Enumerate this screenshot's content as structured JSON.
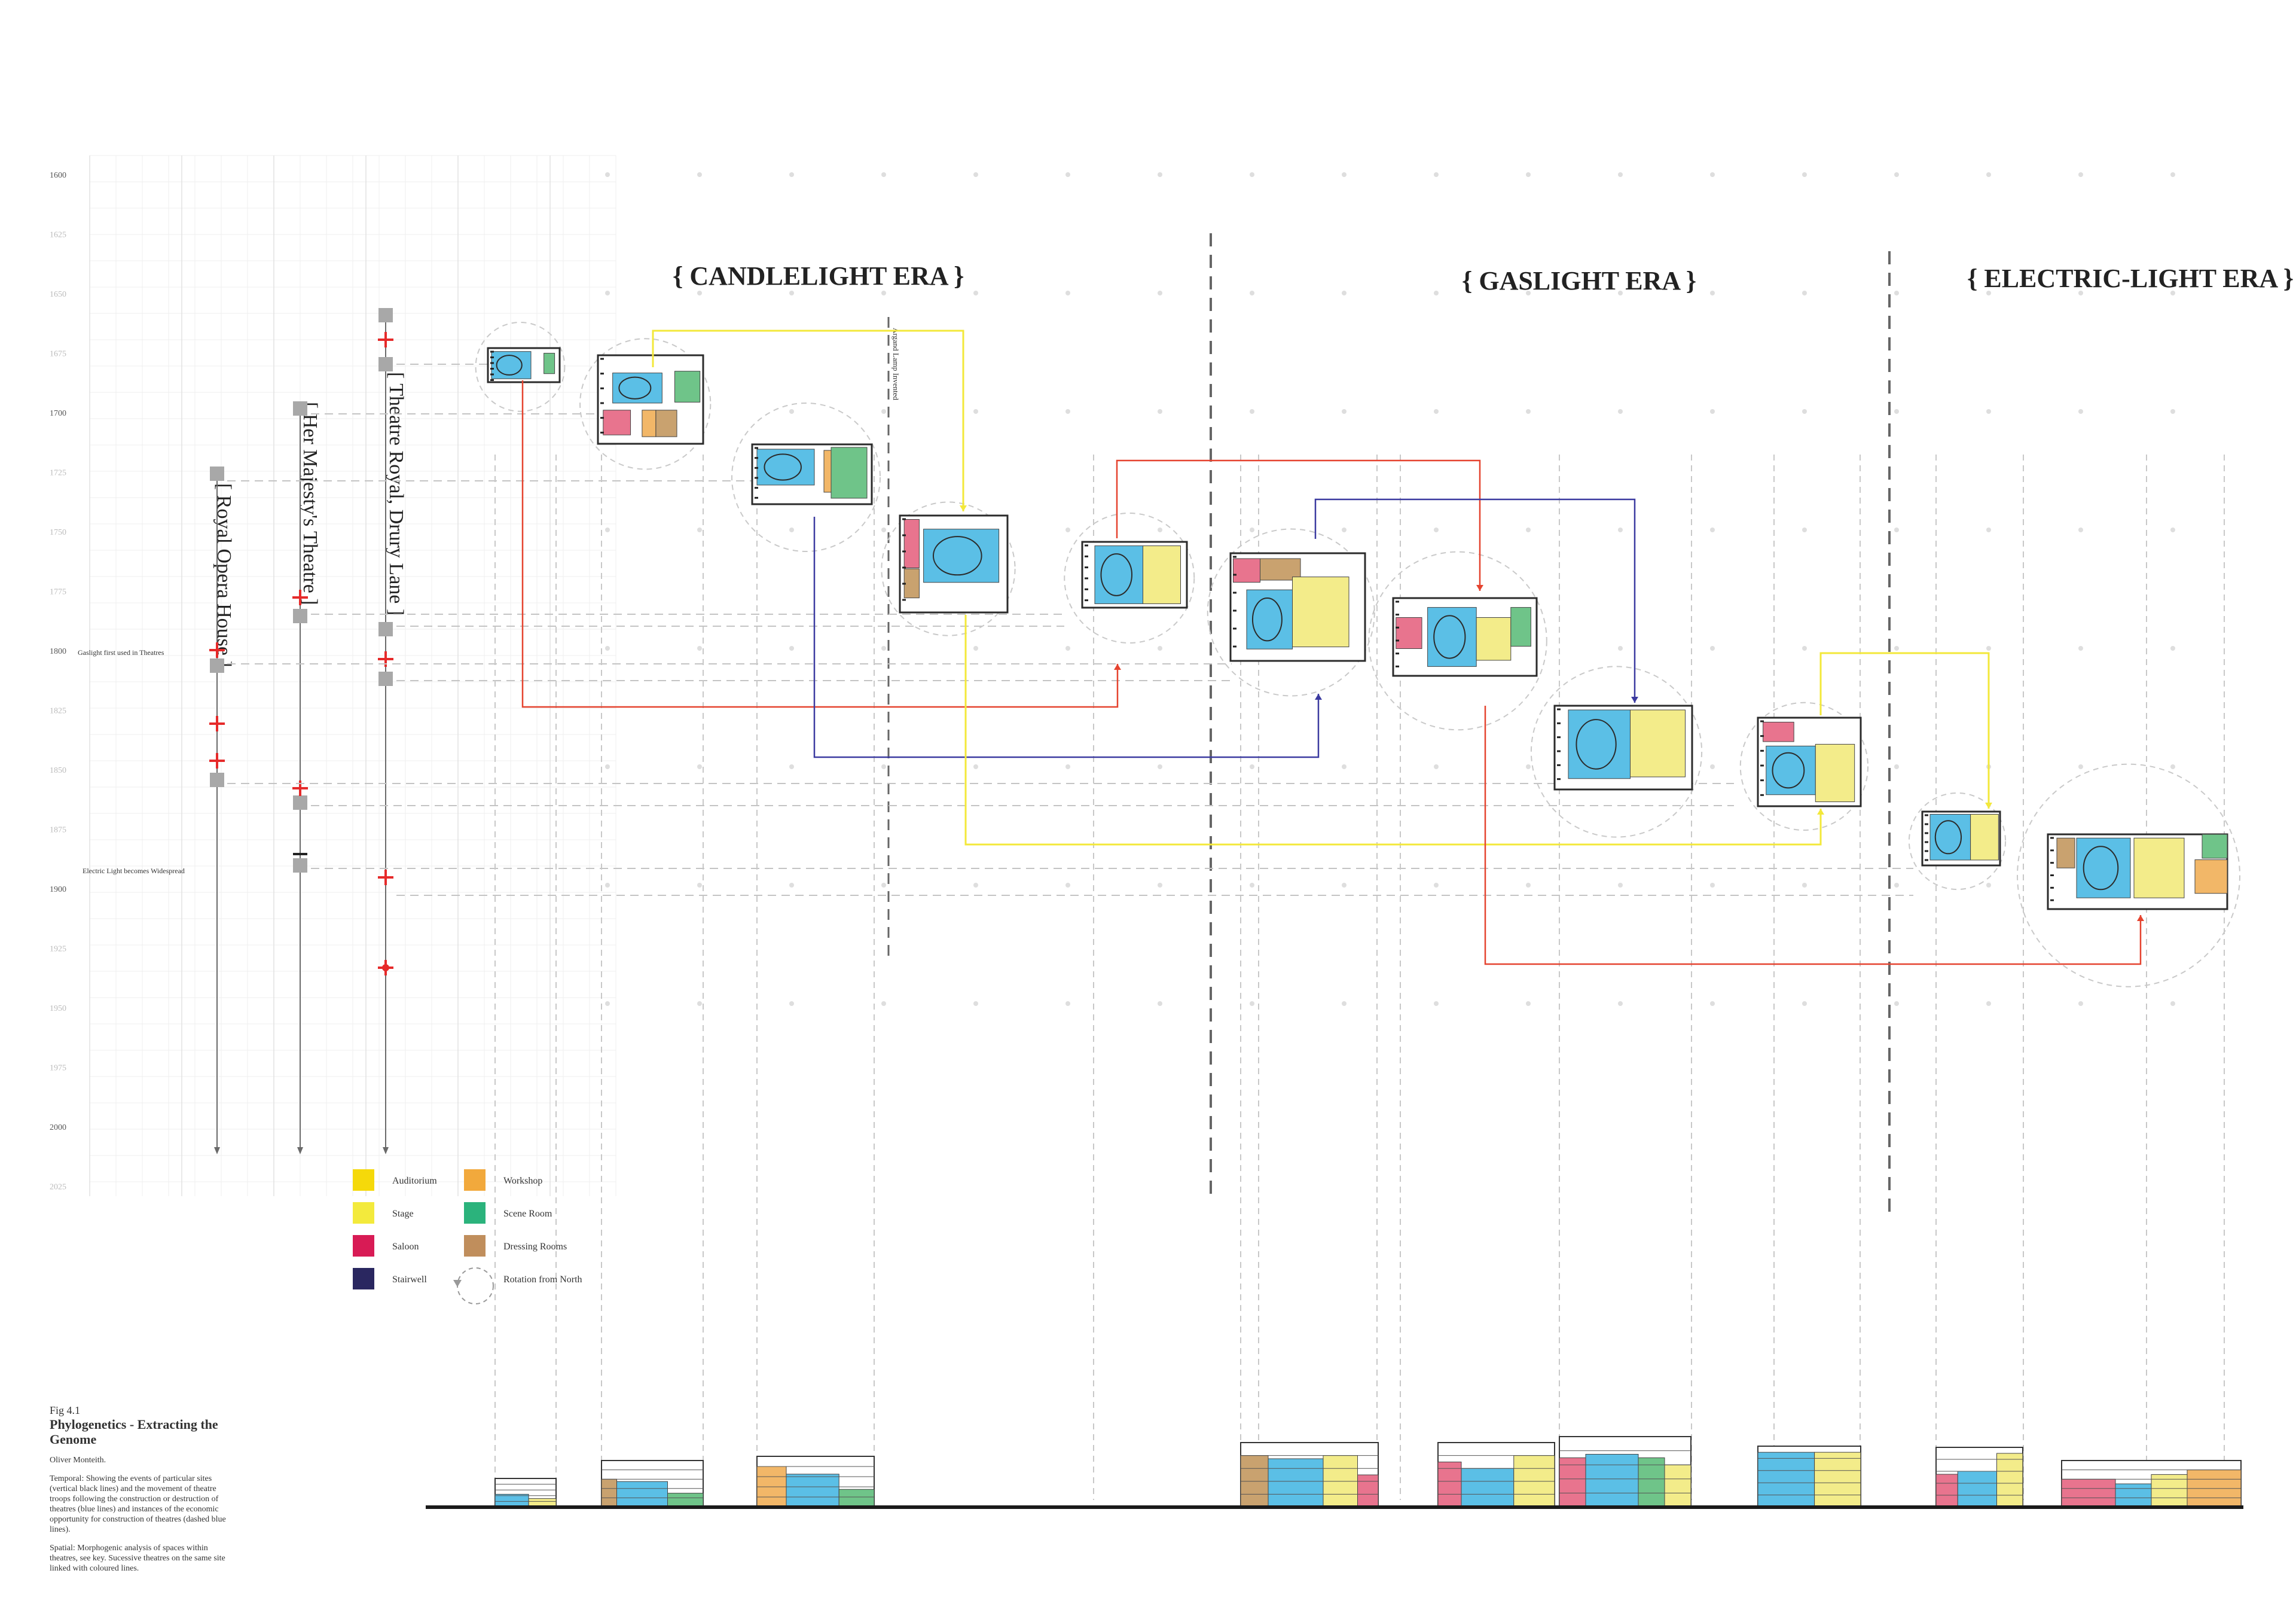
{
  "eras": [
    "{ CANDLELIGHT ERA }",
    "{ GASLIGHT ERA }",
    "{ ELECTRIC-LIGHT ERA }"
  ],
  "years": [
    {
      "year": 1600,
      "show": "1600"
    },
    {
      "year": 1625,
      "show": "1625"
    },
    {
      "year": 1650,
      "show": "1650"
    },
    {
      "year": 1675,
      "show": "1675"
    },
    {
      "year": 1700,
      "show": "1700"
    },
    {
      "year": 1725,
      "show": "1725"
    },
    {
      "year": 1750,
      "show": "1750"
    },
    {
      "year": 1775,
      "show": "1775"
    },
    {
      "year": 1800,
      "show": "1800"
    },
    {
      "year": 1825,
      "show": "1825"
    },
    {
      "year": 1850,
      "show": "1850"
    },
    {
      "year": 1875,
      "show": "1875"
    },
    {
      "year": 1900,
      "show": "1900"
    },
    {
      "year": 1925,
      "show": "1925"
    },
    {
      "year": 1950,
      "show": "1950"
    },
    {
      "year": 1975,
      "show": "1975"
    },
    {
      "year": 2000,
      "show": "2000"
    },
    {
      "year": 2025,
      "show": "2025"
    }
  ],
  "events": {
    "gaslight": "Gaslight first used in Theatres",
    "electric": "Electric Light becomes Widespread",
    "argand": "Argand Lamp Invented"
  },
  "sites": [
    "[ Royal Opera House ]",
    "[ Her Majesty's Theatre ]",
    "[ Theatre Royal, Drury Lane ]"
  ],
  "legend": {
    "items": [
      {
        "label": "Auditorium",
        "color": "#f5d90a"
      },
      {
        "label": "Stage",
        "color": "#f3ea3c"
      },
      {
        "label": "Saloon",
        "color": "#d81b55"
      },
      {
        "label": "Stairwell",
        "color": "#2a2760"
      },
      {
        "label": "Workshop",
        "color": "#f2a93c"
      },
      {
        "label": "Scene Room",
        "color": "#2bb37c"
      },
      {
        "label": "Dressing Rooms",
        "color": "#c08e5c"
      }
    ],
    "rotation": "Rotation from North"
  },
  "space_colors": {
    "auditorium": "#5bbfe6",
    "stage": "#f3ec8a",
    "saloon": "#e8748e",
    "scene": "#6fc489",
    "dressing": "#c9a26f",
    "workshop": "#f2b768",
    "walls": "#2b2b2b"
  },
  "link_colors": {
    "red": "#e5432f",
    "yellow": "#f3e83a",
    "blue": "#3b3aa0"
  },
  "caption": {
    "fig": "Fig 4.1",
    "title": "Phylogenetics - Extracting the Genome",
    "author": "Oliver Monteith.",
    "temporal": "Temporal: Showing the events of particular sites (vertical black lines) and the movement of theatre troops following the construction or destruction of theatres (blue lines) and instances of the economic opportunity for construction of theatres (dashed blue lines).",
    "spatial": "Spatial: Morphogenic analysis of spaces within theatres, see key. Sucessive theatres on the same site linked with coloured lines."
  }
}
